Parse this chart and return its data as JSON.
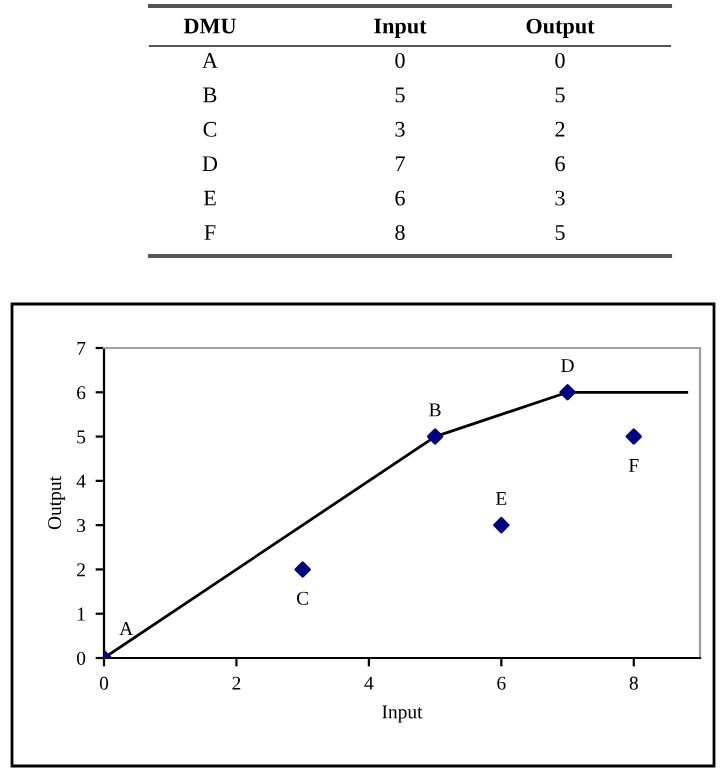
{
  "chart_data": [
    {
      "type": "other",
      "annotations": [
        "DMU",
        "Input",
        "Output",
        "A",
        "0",
        "0",
        "B",
        "5",
        "5",
        "C",
        "3",
        "2",
        "D",
        "7",
        "6",
        "E",
        "6",
        "3",
        "F",
        "8",
        "5"
      ]
    },
    {
      "type": "scatter",
      "xlabel": "Input",
      "ylabel": "Output",
      "series": [
        {
          "type": "line",
          "color": "#000000",
          "x": [
            0,
            5,
            7,
            8.8
          ],
          "values": [
            0,
            5,
            6,
            6
          ],
          "marker": "none"
        },
        {
          "color": "#000080",
          "x": [
            0,
            5,
            3,
            7,
            6,
            8
          ],
          "values": [
            0,
            5,
            2,
            6,
            3,
            5
          ],
          "marker": "diamond"
        }
      ],
      "annotations": [
        {
          "text": "A",
          "x": 0,
          "y": 0
        },
        {
          "text": "B",
          "x": 5,
          "y": 5
        },
        {
          "text": "C",
          "x": 3,
          "y": 2
        },
        {
          "text": "D",
          "x": 7,
          "y": 6
        },
        {
          "text": "E",
          "x": 6,
          "y": 3
        },
        {
          "text": "F",
          "x": 8,
          "y": 5
        }
      ],
      "xlim": [
        0,
        9
      ],
      "ylim": [
        0,
        7
      ],
      "xticks": [
        0,
        2,
        4,
        6,
        8
      ],
      "yticks": [
        0,
        1,
        2,
        3,
        4,
        5,
        6,
        7
      ],
      "grid": false,
      "legend": false
    }
  ]
}
